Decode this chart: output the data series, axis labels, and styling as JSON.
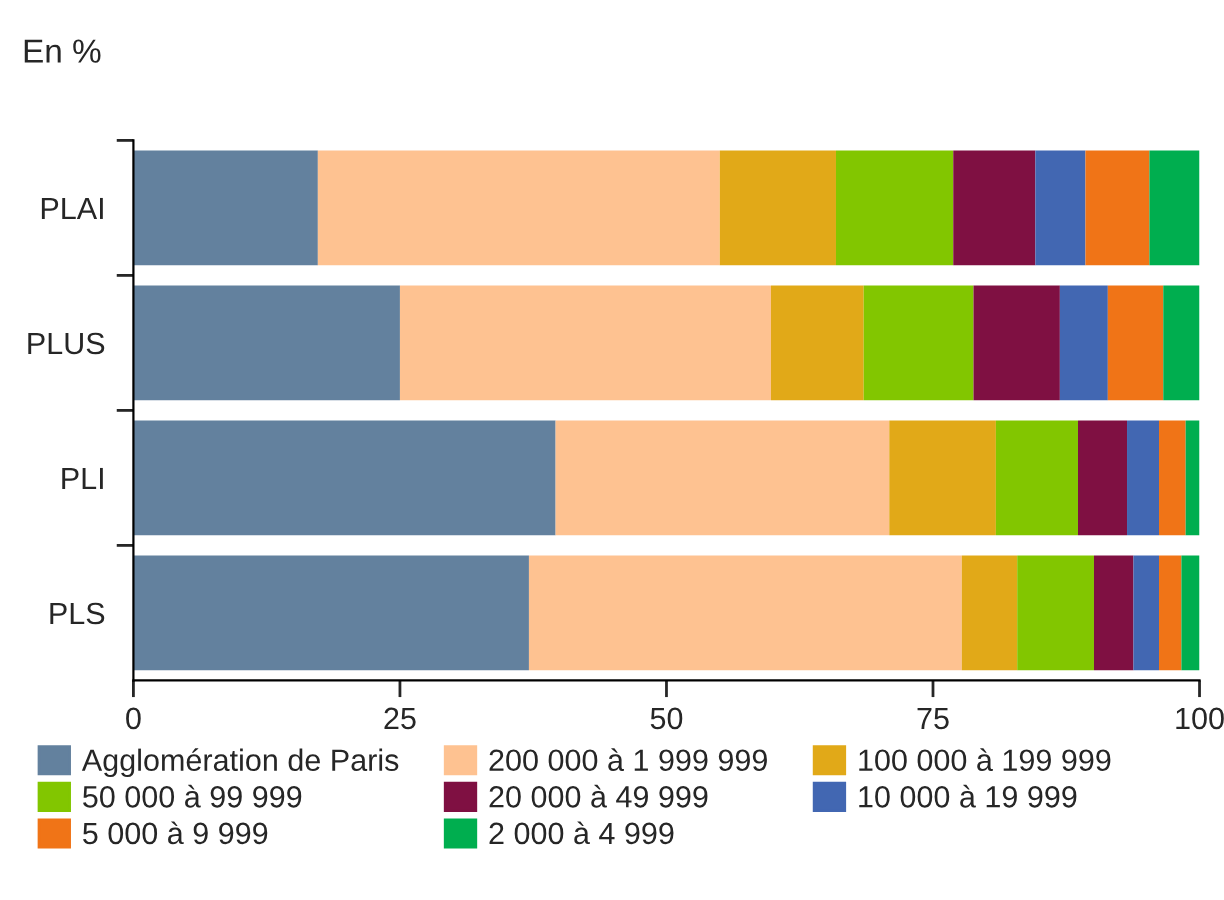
{
  "chart_data": {
    "type": "bar",
    "orientation": "horizontal",
    "stacked": true,
    "subtitle": "En %",
    "categories": [
      "PLAI",
      "PLUS",
      "PLI",
      "PLS"
    ],
    "series": [
      {
        "name": "Agglomération de Paris",
        "color": "#63819e",
        "values": [
          17.3,
          25.0,
          39.6,
          37.1
        ]
      },
      {
        "name": "200 000 à 1 999 999",
        "color": "#fec291",
        "values": [
          37.7,
          34.8,
          31.3,
          40.6
        ]
      },
      {
        "name": "100 000 à 199 999",
        "color": "#e1a918",
        "values": [
          10.9,
          8.7,
          10.0,
          5.2
        ]
      },
      {
        "name": "50 000 à 99 999",
        "color": "#82c600",
        "values": [
          11.0,
          10.3,
          7.7,
          7.2
        ]
      },
      {
        "name": "20 000 à 49 999",
        "color": "#7f1042",
        "values": [
          7.7,
          8.1,
          4.6,
          3.7
        ]
      },
      {
        "name": "10 000 à 19 999",
        "color": "#4267b2",
        "values": [
          4.7,
          4.5,
          3.0,
          2.4
        ]
      },
      {
        "name": "5 000 à 9 999",
        "color": "#f07417",
        "values": [
          6.0,
          5.2,
          2.5,
          2.1
        ]
      },
      {
        "name": "2 000 à 4 999",
        "color": "#00ae4f",
        "values": [
          4.7,
          3.4,
          1.3,
          1.7
        ]
      }
    ],
    "xlim": [
      0,
      100
    ],
    "xticks": [
      0,
      25,
      50,
      75,
      100
    ],
    "grid": false,
    "legend": "bottom"
  }
}
